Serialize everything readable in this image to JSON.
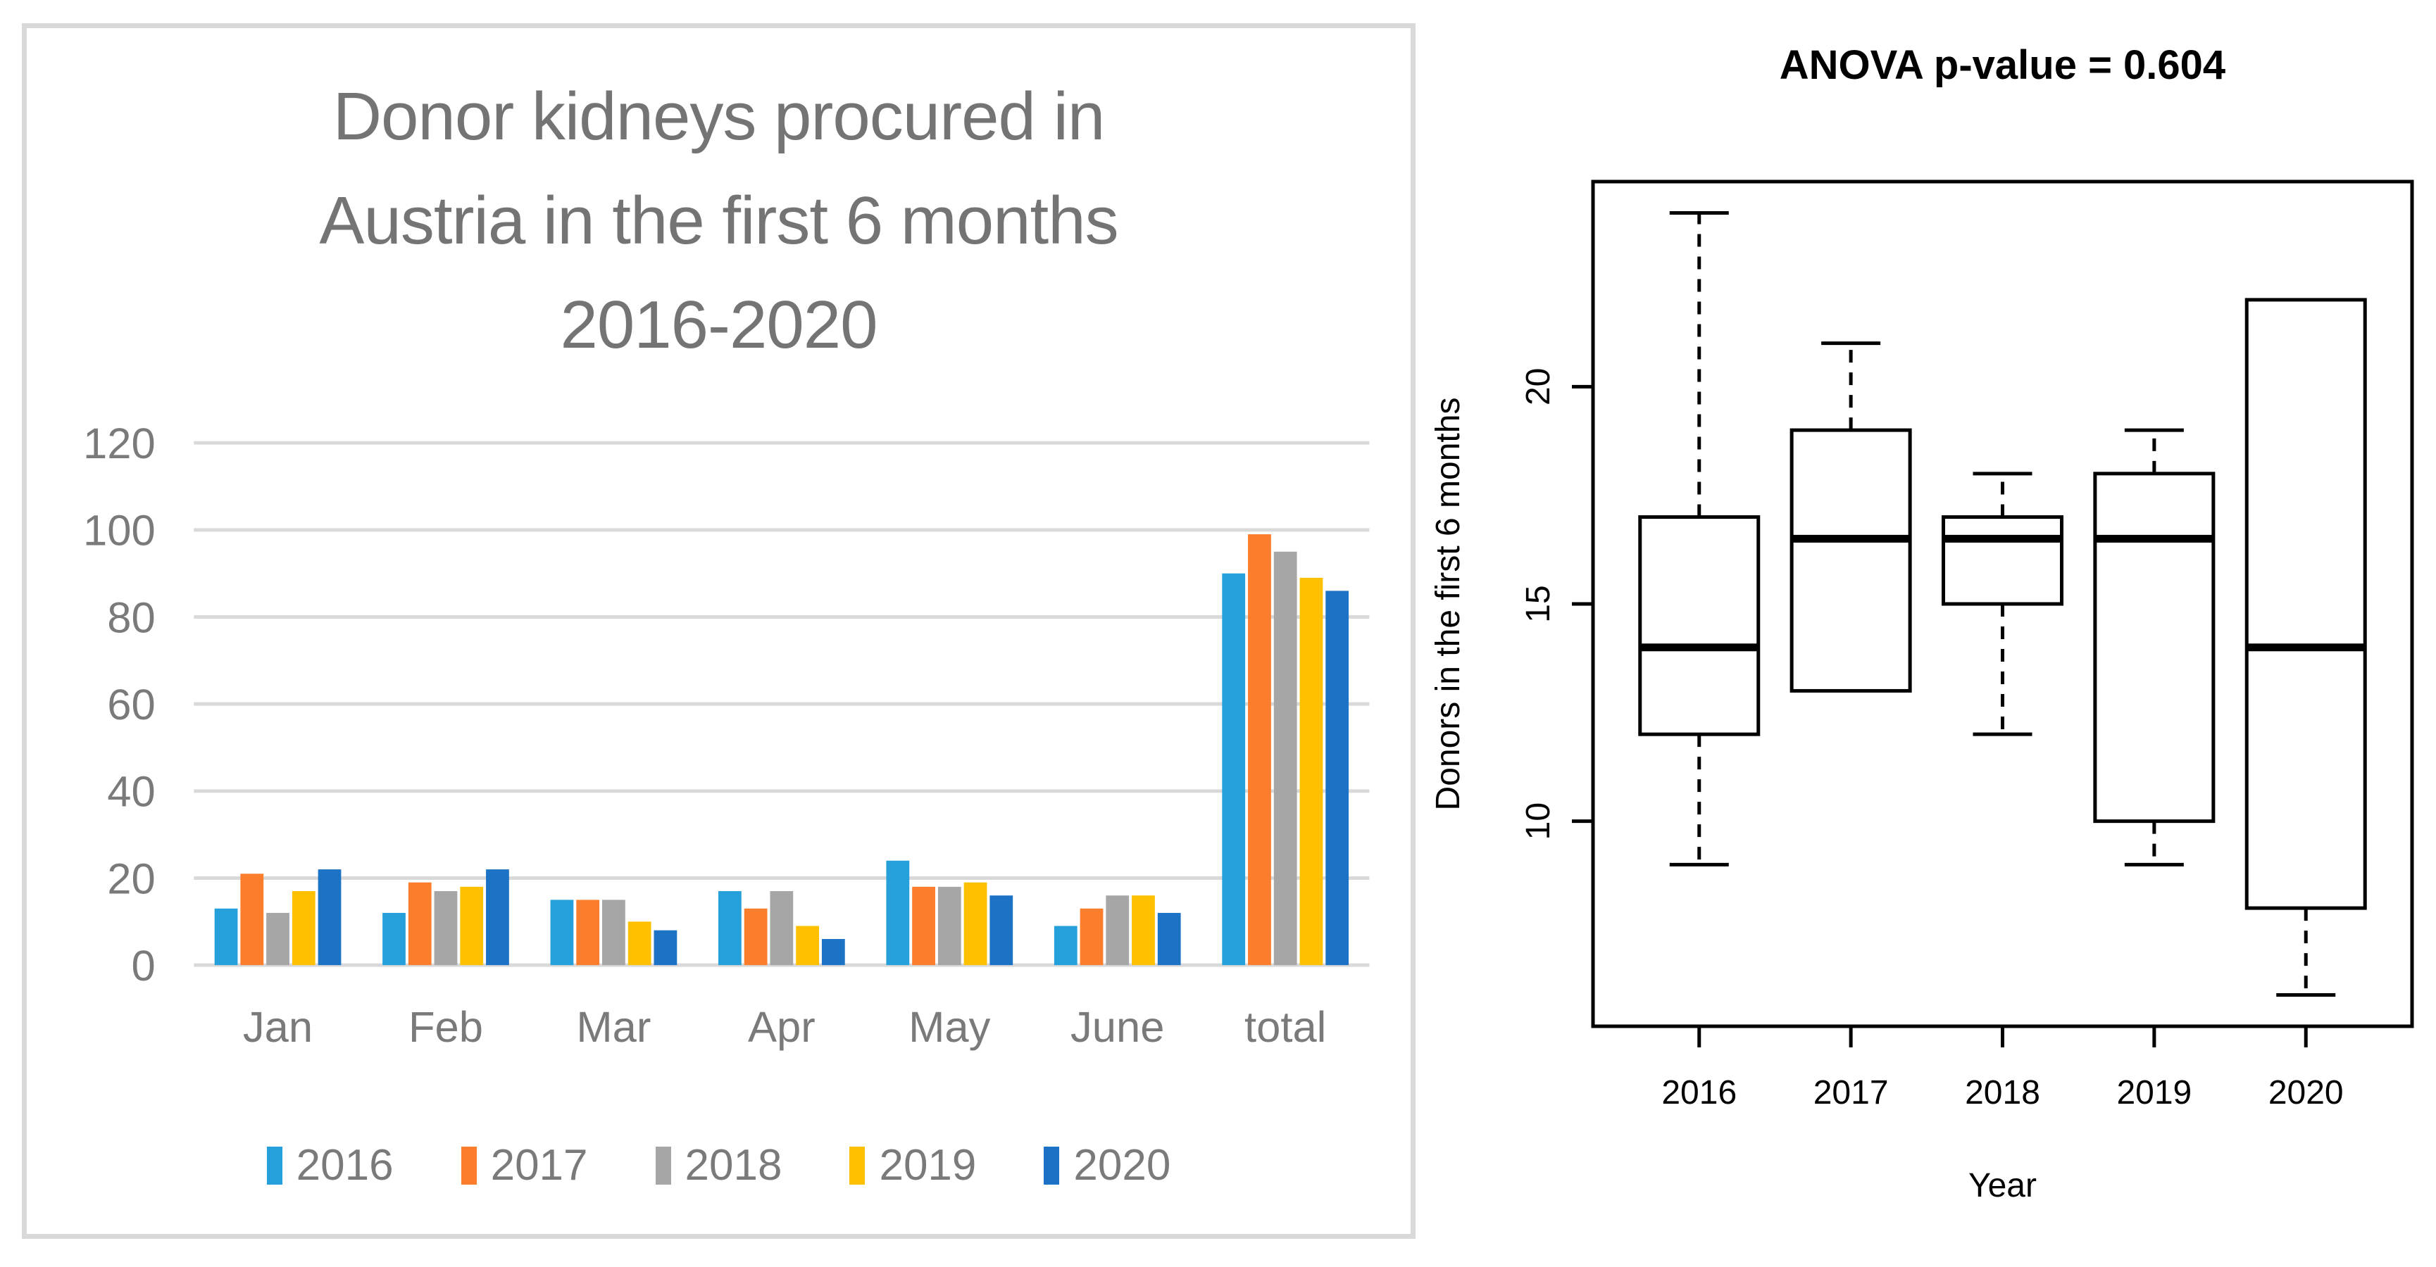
{
  "ui_colors": {
    "background": "#FFFFFF",
    "panel_border": "#D9D9D9",
    "gridline": "#D9D9D9",
    "axis_text": "#7A7A7A",
    "title_text": "#747474",
    "boxplot_ink": "#000000"
  },
  "left_chart": {
    "title_lines": [
      "Donor kidneys procured in",
      "Austria in the first 6 months",
      "2016-2020"
    ]
  },
  "chart_data": [
    {
      "type": "bar",
      "title": "Donor kidneys procured in Austria in the first 6 months 2016-2020",
      "categories": [
        "Jan",
        "Feb",
        "Mar",
        "Apr",
        "May",
        "June",
        "total"
      ],
      "series": [
        {
          "name": "2016",
          "color": "#25A0DA",
          "values": [
            13,
            12,
            15,
            17,
            24,
            9,
            90
          ]
        },
        {
          "name": "2017",
          "color": "#FC7D2B",
          "values": [
            21,
            19,
            15,
            13,
            18,
            13,
            99
          ]
        },
        {
          "name": "2018",
          "color": "#A6A6A6",
          "values": [
            12,
            17,
            15,
            17,
            18,
            16,
            95
          ]
        },
        {
          "name": "2019",
          "color": "#FFC000",
          "values": [
            17,
            18,
            10,
            9,
            19,
            16,
            89
          ]
        },
        {
          "name": "2020",
          "color": "#1C73C5",
          "values": [
            22,
            22,
            8,
            6,
            16,
            12,
            86
          ]
        }
      ],
      "xlabel": "",
      "ylabel": "",
      "ylim": [
        0,
        120
      ],
      "yticks": [
        0,
        20,
        40,
        60,
        80,
        100,
        120
      ],
      "grid": true,
      "legend_position": "bottom"
    },
    {
      "type": "boxplot",
      "title": "ANOVA p-value = 0.604",
      "xlabel": "Year",
      "ylabel": "Donors in the first 6 months",
      "categories": [
        "2016",
        "2017",
        "2018",
        "2019",
        "2020"
      ],
      "yticks": [
        10,
        15,
        20
      ],
      "ylim": [
        5.28,
        24.72
      ],
      "boxes": [
        {
          "category": "2016",
          "whisker_low": 9,
          "q1": 12,
          "median": 14,
          "q3": 17,
          "whisker_high": 24
        },
        {
          "category": "2017",
          "whisker_low": 13,
          "q1": 13,
          "median": 16.5,
          "q3": 19,
          "whisker_high": 21
        },
        {
          "category": "2018",
          "whisker_low": 12,
          "q1": 15,
          "median": 16.5,
          "q3": 17,
          "whisker_high": 18
        },
        {
          "category": "2019",
          "whisker_low": 9,
          "q1": 10,
          "median": 16.5,
          "q3": 18,
          "whisker_high": 19
        },
        {
          "category": "2020",
          "whisker_low": 6,
          "q1": 8,
          "median": 14,
          "q3": 22,
          "whisker_high": 22
        }
      ]
    }
  ]
}
